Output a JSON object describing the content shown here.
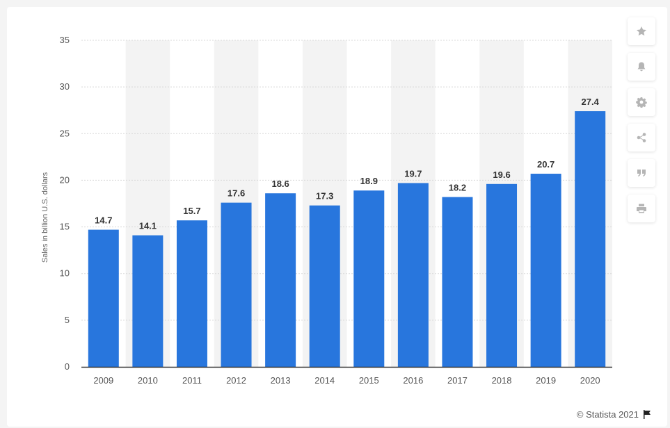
{
  "sidebar": {
    "buttons": [
      {
        "icon": "star-icon"
      },
      {
        "icon": "bell-icon"
      },
      {
        "icon": "gear-icon"
      },
      {
        "icon": "share-icon"
      },
      {
        "icon": "quote-icon"
      },
      {
        "icon": "print-icon"
      }
    ]
  },
  "credit": {
    "text": "© Statista 2021",
    "icon": "flag-icon"
  },
  "colors": {
    "bar": "#2876dd",
    "band": "#f3f3f3",
    "grid": "#d8d8d8",
    "axis": "#333333"
  },
  "chart_data": {
    "type": "bar",
    "categories": [
      "2009",
      "2010",
      "2011",
      "2012",
      "2013",
      "2014",
      "2015",
      "2016",
      "2017",
      "2018",
      "2019",
      "2020"
    ],
    "values": [
      14.7,
      14.1,
      15.7,
      17.6,
      18.6,
      17.3,
      18.9,
      19.7,
      18.2,
      19.6,
      20.7,
      27.4
    ],
    "value_labels": [
      "14.7",
      "14.1",
      "15.7",
      "17.6",
      "18.6",
      "17.3",
      "18.9",
      "19.7",
      "18.2",
      "19.6",
      "20.7",
      "27.4"
    ],
    "title": "",
    "xlabel": "",
    "ylabel": "Sales in billion U.S. dollars",
    "ylim": [
      0,
      35
    ],
    "yticks": [
      0,
      5,
      10,
      15,
      20,
      25,
      30,
      35
    ],
    "grid": true,
    "alternating_column_bands": true
  }
}
